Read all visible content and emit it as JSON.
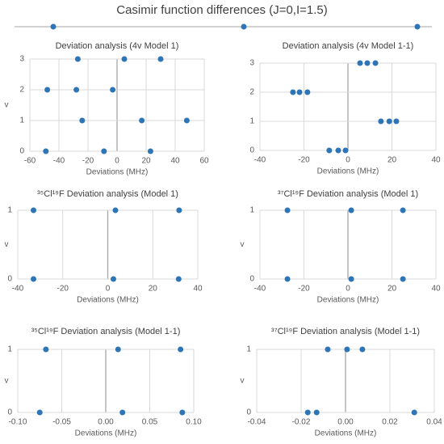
{
  "title": "Casimir function differences (J=0,I=1.5)",
  "chart_data": [
    {
      "type": "scatter",
      "title": "Deviation analysis (4v Model 1)",
      "x_label": "Deviations (MHz)",
      "y_label": "v",
      "color": "#2e75b6",
      "x": [
        -27,
        5,
        30,
        -48,
        -28,
        -3,
        -24,
        17,
        48,
        -49,
        -9,
        23
      ],
      "values": [
        3,
        3,
        3,
        2,
        2,
        2,
        1,
        1,
        1,
        0,
        0,
        0
      ],
      "xlim": [
        -60,
        60
      ],
      "xticks": [
        -60,
        -40,
        -20,
        0,
        20,
        40,
        60
      ],
      "ylim": [
        0,
        3
      ],
      "yticks": [
        0,
        1,
        2,
        3
      ],
      "grid": true
    },
    {
      "type": "scatter",
      "title": "Deviation analysis (4v Model 1-1)",
      "x_label": "Deviations (MHz)",
      "color": "#2e75b6",
      "x": [
        5.5,
        8.8,
        12.5,
        -25,
        -22,
        -18.4,
        15,
        18.8,
        22,
        -8.5,
        -4.4,
        -1.1
      ],
      "values": [
        3,
        3,
        3,
        2,
        2,
        2,
        1,
        1,
        1,
        0,
        0,
        0
      ],
      "xlim": [
        -40,
        40
      ],
      "xticks": [
        -40,
        -20,
        0,
        20,
        40
      ],
      "ylim": [
        0,
        3
      ],
      "yticks": [
        0,
        1,
        2,
        3
      ],
      "grid": true
    },
    {
      "type": "scatter",
      "title": "³⁵Cl¹⁹F Deviation analysis (Model 1)",
      "x_label": "Deviations (MHz)",
      "y_label": "v",
      "color": "#2e75b6",
      "x": [
        -33,
        3.4,
        31.7,
        -33,
        2.5,
        31.5
      ],
      "values": [
        1,
        1,
        1,
        0,
        0,
        0
      ],
      "xlim": [
        -40,
        40
      ],
      "xticks": [
        -40,
        -20,
        0,
        20,
        40
      ],
      "ylim": [
        0,
        1
      ],
      "yticks": [
        0,
        1
      ],
      "grid": true
    },
    {
      "type": "scatter",
      "title": "³⁷Cl¹⁹F Deviation analysis (Model 1)",
      "x_label": "Deviations (MHz)",
      "y_label": "v",
      "color": "#2e75b6",
      "x": [
        -27.5,
        1.5,
        25,
        -27.5,
        1.5,
        25
      ],
      "values": [
        1,
        1,
        1,
        0,
        0,
        0
      ],
      "xlim": [
        -40,
        40
      ],
      "xticks": [
        -40,
        -20,
        0,
        20,
        40
      ],
      "ylim": [
        0,
        1
      ],
      "yticks": [
        0,
        1
      ],
      "grid": true
    },
    {
      "type": "scatter",
      "title": "³⁵Cl¹⁹F Deviation analysis (Model 1-1)",
      "x_label": "Deviations (MHz)",
      "y_label": "v",
      "color": "#2e75b6",
      "x": [
        -0.068,
        0.014,
        0.085,
        -0.075,
        0.019,
        0.087
      ],
      "values": [
        1,
        1,
        1,
        0,
        0,
        0
      ],
      "xlim": [
        -0.1,
        0.1
      ],
      "xticks": [
        {
          "value": -0.1,
          "label": "-0.10"
        },
        -0.05,
        {
          "value": 0,
          "label": "0.00"
        },
        0.05,
        {
          "value": 0.1,
          "label": "0.10"
        }
      ],
      "ylim": [
        0,
        1
      ],
      "yticks": [
        0,
        1
      ],
      "grid": true
    },
    {
      "type": "scatter",
      "title": "³⁷Cl¹⁹F Deviation analysis (Model 1-1)",
      "x_label": "Deviations (MHz)",
      "y_label": "v",
      "color": "#2e75b6",
      "x": [
        -0.008,
        0.0007,
        0.0076,
        -0.017,
        -0.013,
        0.031
      ],
      "values": [
        1,
        1,
        1,
        0,
        0,
        0
      ],
      "xlim": [
        -0.04,
        0.04
      ],
      "xticks": [
        -0.04,
        -0.02,
        {
          "value": 0,
          "label": "0.00"
        },
        0.02,
        0.04
      ],
      "ylim": [
        0,
        1
      ],
      "yticks": [
        0,
        1
      ],
      "grid": true
    }
  ]
}
